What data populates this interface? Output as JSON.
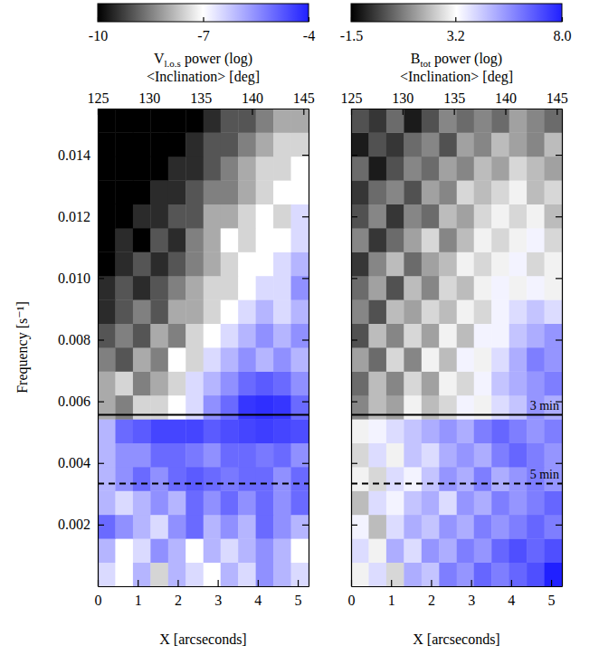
{
  "chart_data": [
    {
      "type": "heatmap",
      "xlabel": "X [arcseconds]",
      "ylabel": "Frequency [s⁻¹]",
      "x2label": "<Inclination> [deg]",
      "xlim": [
        0,
        5.27
      ],
      "xticks": [
        0,
        1,
        2,
        3,
        4,
        5
      ],
      "x2lim": [
        125,
        145.5
      ],
      "x2ticks": [
        125,
        130,
        135,
        140,
        145
      ],
      "ylim": [
        0,
        0.0155
      ],
      "yticks": [
        0.002,
        0.004,
        0.006,
        0.008,
        {
          "value": 0.01,
          "label": "0.010"
        },
        0.012,
        0.014
      ],
      "colorbar": {
        "label": "Vl.o.s power (log)",
        "label_subscript": "l.o.s",
        "range": [
          -10,
          -4
        ],
        "ticks": [
          -10,
          -7,
          -4
        ]
      },
      "x_edges": [
        0,
        0.44,
        0.88,
        1.32,
        1.76,
        2.2,
        2.64,
        3.07,
        3.51,
        3.95,
        4.39,
        4.83,
        5.27
      ],
      "y_edges": [
        0,
        0.000775,
        0.00155,
        0.002325,
        0.0031,
        0.003875,
        0.00465,
        0.005425,
        0.0062,
        0.006975,
        0.00775,
        0.008525,
        0.0093,
        0.010075,
        0.01085,
        0.011625,
        0.0124,
        0.013175,
        0.01395,
        0.014725,
        0.0155
      ],
      "values": [
        [
          -6.5,
          -7,
          -6,
          -7.5,
          -6,
          -6.5,
          -7,
          -6,
          -6.5,
          -5.5,
          -6,
          -6.5
        ],
        [
          -6,
          -7,
          -6.5,
          -5.5,
          -6,
          -7,
          -6,
          -6.5,
          -6,
          -5.5,
          -6,
          -7
        ],
        [
          -5,
          -5.5,
          -6,
          -6.5,
          -5.5,
          -5,
          -6,
          -5.5,
          -6,
          -5,
          -5.5,
          -6
        ],
        [
          -6,
          -6.5,
          -6,
          -5.5,
          -6,
          -5,
          -5.5,
          -5,
          -5.5,
          -5,
          -5.5,
          -5
        ],
        [
          -6,
          -5.5,
          -5,
          -5.5,
          -5,
          -4.8,
          -5,
          -5.2,
          -5,
          -5,
          -5.5,
          -5
        ],
        [
          -6,
          -5.5,
          -5.5,
          -5,
          -5,
          -5.2,
          -5.5,
          -5,
          -5,
          -5.2,
          -5,
          -5.5
        ],
        [
          -6,
          -5,
          -4.8,
          -4.5,
          -4.5,
          -4.5,
          -4.8,
          -4.6,
          -4.5,
          -4.4,
          -4.5,
          -4.6
        ],
        [
          -8,
          -8.5,
          -7.5,
          -7.5,
          -7,
          -6.5,
          -5.5,
          -5,
          -4.3,
          -4.2,
          -4.3,
          -5
        ],
        [
          -8,
          -7.5,
          -8.5,
          -8,
          -7.5,
          -6.5,
          -6,
          -5.5,
          -5,
          -4.8,
          -5,
          -5.5
        ],
        [
          -8.5,
          -9,
          -8,
          -8.5,
          -7,
          -7.5,
          -6.5,
          -6,
          -5.5,
          -6,
          -5.5,
          -6
        ],
        [
          -9,
          -8.5,
          -9,
          -8,
          -8.5,
          -7.5,
          -7,
          -6.5,
          -6,
          -5.5,
          -6,
          -5.5
        ],
        [
          -9.5,
          -9,
          -8.5,
          -9,
          -8,
          -8,
          -7.5,
          -7,
          -6.5,
          -6,
          -6.5,
          -6
        ],
        [
          -9.5,
          -9,
          -9.5,
          -9,
          -8.5,
          -8,
          -7.5,
          -7.5,
          -7,
          -6.5,
          -6.5,
          -5.5
        ],
        [
          -10,
          -9.5,
          -9,
          -9.5,
          -9,
          -8.5,
          -8,
          -7.5,
          -7,
          -7,
          -6.5,
          -6
        ],
        [
          -10,
          -9.5,
          -10,
          -9,
          -9.5,
          -8.5,
          -8,
          -7,
          -7.5,
          -7,
          -7,
          -6.5
        ],
        [
          -10,
          -10,
          -9.5,
          -9.5,
          -9,
          -9,
          -8,
          -8,
          -7.5,
          -7,
          -7.5,
          -6.5
        ],
        [
          -10,
          -10,
          -10,
          -9.5,
          -9.5,
          -9,
          -8.5,
          -8.5,
          -8,
          -7.5,
          -7,
          -7
        ],
        [
          -10,
          -10,
          -10,
          -10,
          -9.5,
          -9.5,
          -9,
          -8.5,
          -8,
          -7.5,
          -7.5,
          -7
        ],
        [
          -10,
          -10,
          -10,
          -10,
          -10,
          -9.5,
          -9,
          -9,
          -8.5,
          -8,
          -7.5,
          -7.5
        ],
        [
          -10,
          -10,
          -10,
          -10,
          -10,
          -10,
          -9.5,
          -9,
          -9,
          -8.5,
          -8,
          -8
        ]
      ],
      "lines": [
        {
          "value": 0.00556,
          "line_style": "solid"
        },
        {
          "value": 0.00333,
          "line_style": "dashed"
        }
      ]
    },
    {
      "type": "heatmap",
      "xlabel": "X [arcseconds]",
      "x2label": "<Inclination> [deg]",
      "tick_labels": "x",
      "xlim": [
        0,
        5.27
      ],
      "xticks": [
        0,
        1,
        2,
        3,
        4,
        5
      ],
      "x2lim": [
        125,
        145.5
      ],
      "x2ticks": [
        125,
        130,
        135,
        140,
        145
      ],
      "ylim": [
        0,
        0.0155
      ],
      "yticks": [
        0.002,
        0.004,
        0.006,
        0.008,
        0.01,
        0.012,
        0.014
      ],
      "colorbar": {
        "label": "Btot power (log)",
        "label_subscript": "tot",
        "range": [
          -1.5,
          8
        ],
        "ticks": [
          -1.5,
          3.2,
          {
            "value": 8,
            "label": "8.0"
          }
        ]
      },
      "x_edges": [
        0,
        0.44,
        0.88,
        1.32,
        1.76,
        2.2,
        2.64,
        3.07,
        3.51,
        3.95,
        4.39,
        4.83,
        5.27
      ],
      "y_edges": [
        0,
        0.000775,
        0.00155,
        0.002325,
        0.0031,
        0.003875,
        0.00465,
        0.005425,
        0.0062,
        0.006975,
        0.00775,
        0.008525,
        0.0093,
        0.010075,
        0.01085,
        0.011625,
        0.0124,
        0.013175,
        0.01395,
        0.014725,
        0.0155
      ],
      "values": [
        [
          3,
          4,
          2.5,
          5,
          4.5,
          6,
          5.5,
          6.5,
          6,
          6.5,
          7,
          8
        ],
        [
          4,
          3,
          5,
          4,
          5.5,
          5,
          6,
          5.5,
          6.5,
          7,
          6.5,
          7
        ],
        [
          3.5,
          2,
          4,
          5,
          4.5,
          5.5,
          5,
          6,
          5.5,
          6,
          6.5,
          6
        ],
        [
          2,
          4,
          3.5,
          4.5,
          5,
          4,
          5.5,
          5,
          6,
          5.5,
          6,
          6.5
        ],
        [
          3,
          2.5,
          4,
          3.5,
          4.5,
          5.5,
          5,
          6,
          5,
          5.5,
          6,
          5.5
        ],
        [
          2.5,
          4,
          3,
          4.5,
          4,
          5,
          5.5,
          5,
          6,
          6.5,
          6,
          5.5
        ],
        [
          3,
          3.5,
          4,
          4.5,
          5,
          5.5,
          5,
          6,
          6.5,
          6,
          5.5,
          6
        ],
        [
          1,
          2,
          1.5,
          3,
          2,
          2.5,
          3.5,
          3,
          4,
          4.5,
          5.5,
          5
        ],
        [
          0.5,
          2,
          1,
          2.5,
          1.5,
          3,
          2.5,
          3.5,
          4.5,
          5,
          5.5,
          6
        ],
        [
          1.5,
          0.5,
          2.5,
          1,
          3,
          2,
          3.5,
          3,
          4,
          5,
          6,
          5.5
        ],
        [
          0,
          2,
          1,
          2.5,
          1.5,
          3,
          2,
          3.5,
          3.5,
          4.5,
          5,
          5.5
        ],
        [
          1,
          0,
          2,
          1.5,
          2.5,
          2,
          3,
          2.5,
          3.5,
          4,
          4.5,
          4
        ],
        [
          0.5,
          1.5,
          0,
          2,
          1,
          2.5,
          2,
          3,
          3.5,
          3,
          3.5,
          3
        ],
        [
          -0.5,
          1,
          2,
          0.5,
          1.5,
          2,
          3,
          2.5,
          3,
          3.5,
          2.5,
          3
        ],
        [
          1,
          -0.5,
          0.5,
          1.5,
          2.5,
          1,
          2,
          3,
          2.5,
          3,
          3.5,
          2.5
        ],
        [
          0,
          1,
          -0.5,
          1,
          0.5,
          2,
          1.5,
          2.5,
          3,
          2.5,
          3,
          2
        ],
        [
          -0.5,
          0.5,
          1,
          0,
          1.5,
          1,
          2.5,
          2,
          2.5,
          3,
          2,
          2.5
        ],
        [
          0.5,
          -1,
          0,
          1,
          0.5,
          1.5,
          1,
          2,
          1.5,
          2.5,
          2,
          1.5
        ],
        [
          -1,
          0,
          -0.5,
          0.5,
          1,
          0,
          1.5,
          1,
          2,
          1.5,
          1,
          2
        ],
        [
          0,
          -0.5,
          0.5,
          -1,
          0,
          1,
          0.5,
          1,
          0.5,
          1.5,
          1,
          0.5
        ]
      ],
      "lines": [
        {
          "value": 0.00556,
          "line_style": "solid",
          "label": "3 min"
        },
        {
          "value": 0.00333,
          "line_style": "dashed",
          "label": "5 min"
        }
      ]
    }
  ]
}
